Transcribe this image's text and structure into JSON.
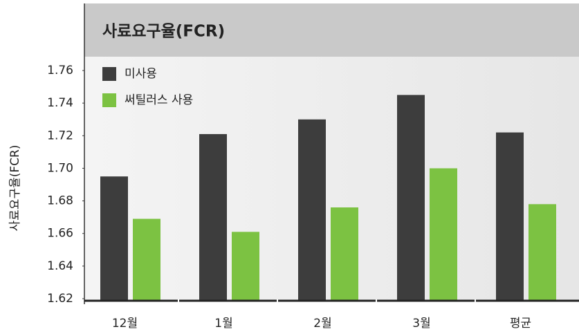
{
  "chart_data": {
    "type": "bar",
    "title": "사료요구율(FCR)",
    "y_label": "사료요구율(FCR)",
    "categories": [
      "12월",
      "1월",
      "2월",
      "3월",
      "평균"
    ],
    "series": [
      {
        "name": "미사용",
        "color": "#3d3d3d",
        "values": [
          1.695,
          1.721,
          1.73,
          1.745,
          1.722
        ]
      },
      {
        "name": "써틸러스 사용",
        "color": "#7cc242",
        "values": [
          1.669,
          1.661,
          1.676,
          1.7,
          1.678
        ]
      }
    ],
    "ylim": [
      1.62,
      1.76
    ],
    "yticks": [
      1.62,
      1.64,
      1.66,
      1.68,
      {
        "value": 1.7,
        "label": "1.70"
      },
      1.72,
      1.74,
      1.76
    ],
    "legend": "top-left"
  }
}
